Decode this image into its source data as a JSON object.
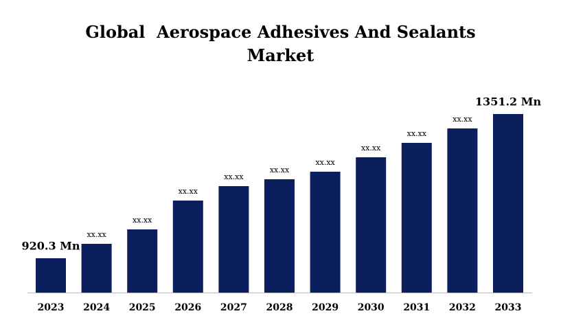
{
  "chart_data": {
    "type": "bar",
    "title": "Global  Aerospace Adhesives And Sealants Market",
    "categories": [
      "2023",
      "2024",
      "2025",
      "2026",
      "2027",
      "2028",
      "2029",
      "2030",
      "2031",
      "2032",
      "2033"
    ],
    "values": [
      920.3,
      963.4,
      1006.5,
      1092.7,
      1135.8,
      1156.3,
      1178.9,
      1221.9,
      1265.0,
      1308.1,
      1351.2
    ],
    "value_labels": [
      "920.3 Mn",
      "xx.xx",
      "xx.xx",
      "xx.xx",
      "xx.xx",
      "xx.xx",
      "xx.xx",
      "xx.xx",
      "xx.xx",
      "xx.xx",
      "1351.2 Mn"
    ],
    "color": "#0b1f5e"
  }
}
